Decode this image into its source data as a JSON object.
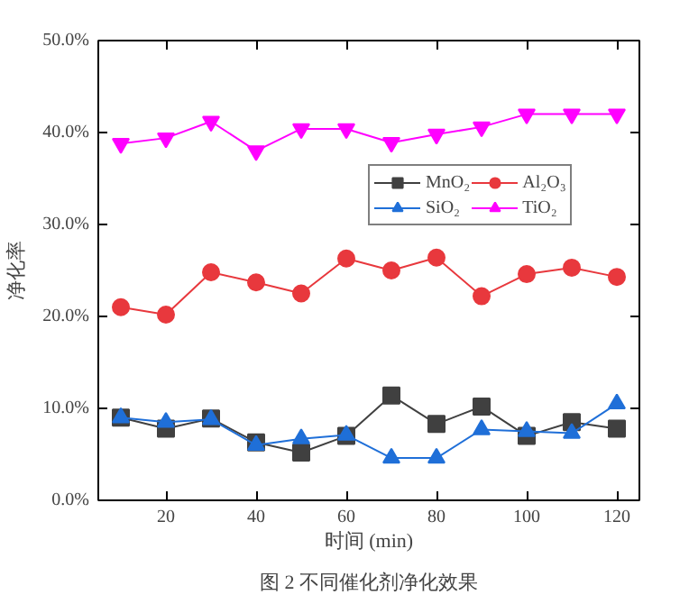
{
  "chart_data": {
    "type": "line",
    "title": "图 2 不同催化剂净化效果",
    "xlabel": "时间 (min)",
    "ylabel": "净化率",
    "x": [
      10,
      20,
      30,
      40,
      50,
      60,
      70,
      80,
      90,
      100,
      110,
      120
    ],
    "series": [
      {
        "name": "MnO₂",
        "color": "#404040",
        "marker": "square",
        "values": [
          9.0,
          7.8,
          8.9,
          6.3,
          5.2,
          7.0,
          11.4,
          8.3,
          10.2,
          7.0,
          8.5,
          7.8
        ]
      },
      {
        "name": "Al₂O₃",
        "color": "#e8383d",
        "marker": "circle",
        "values": [
          21.0,
          20.2,
          24.8,
          23.7,
          22.5,
          26.3,
          25.0,
          26.4,
          22.2,
          24.6,
          25.3,
          24.3
        ]
      },
      {
        "name": "SiO₂",
        "color": "#1f6fd8",
        "marker": "triangle",
        "values": [
          9.0,
          8.5,
          8.8,
          6.0,
          6.7,
          7.1,
          4.6,
          4.6,
          7.7,
          7.5,
          7.3,
          10.5
        ]
      },
      {
        "name": "TiO₂",
        "color": "#ff00ff",
        "marker": "triangle",
        "values": [
          38.8,
          39.4,
          41.2,
          38.0,
          40.4,
          40.4,
          38.9,
          39.8,
          40.6,
          42.0,
          42.0,
          42.0
        ]
      }
    ],
    "xlim": [
      5,
      125
    ],
    "xticks": [
      20,
      40,
      60,
      80,
      100,
      120
    ],
    "ylim": [
      0,
      50
    ],
    "yticks": [
      {
        "value": 0,
        "label": "0.0%"
      },
      {
        "value": 10,
        "label": "10.0%"
      },
      {
        "value": 20,
        "label": "20.0%"
      },
      {
        "value": 30,
        "label": "30.0%"
      },
      {
        "value": 40,
        "label": "40.0%"
      },
      {
        "value": 50,
        "label": "50.0%"
      }
    ],
    "grid": false,
    "legend": "top right",
    "line_style": "solid"
  }
}
